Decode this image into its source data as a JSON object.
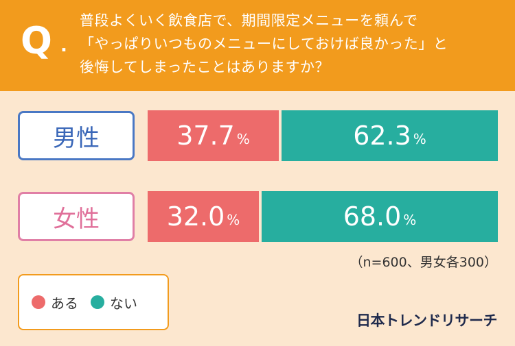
{
  "header": {
    "q_mark": "Q",
    "q_dot": ".",
    "question_lines": [
      "普段よくいく飲食店で、期間限定メニューを頼んで",
      "「やっぱりいつものメニューにしておけば良かった」と",
      "後悔してしまったことはありますか？"
    ]
  },
  "chart_data": {
    "type": "bar",
    "orientation": "horizontal-stacked-100",
    "categories": [
      "男性",
      "女性"
    ],
    "series": [
      {
        "name": "ある",
        "values": [
          37.7,
          32.0
        ],
        "color": "#ed6b6b"
      },
      {
        "name": "ない",
        "values": [
          62.3,
          68.0
        ],
        "color": "#27ae9f"
      }
    ],
    "value_labels": [
      [
        "37.7",
        "62.3"
      ],
      [
        "32.0",
        "68.0"
      ]
    ],
    "unit": "%",
    "xlim": [
      0,
      100
    ]
  },
  "labels": {
    "male": "男性",
    "female": "女性"
  },
  "note": "（n=600、男女各300）",
  "legend": [
    {
      "label": "ある",
      "color": "#ed6b6b"
    },
    {
      "label": "ない",
      "color": "#27ae9f"
    }
  ],
  "logo": "日本トレンドリサーチ",
  "colors": {
    "header": "#f29b1d",
    "background": "#fce7cf",
    "male_border": "#4a78c4",
    "female_border": "#e07fa6"
  }
}
